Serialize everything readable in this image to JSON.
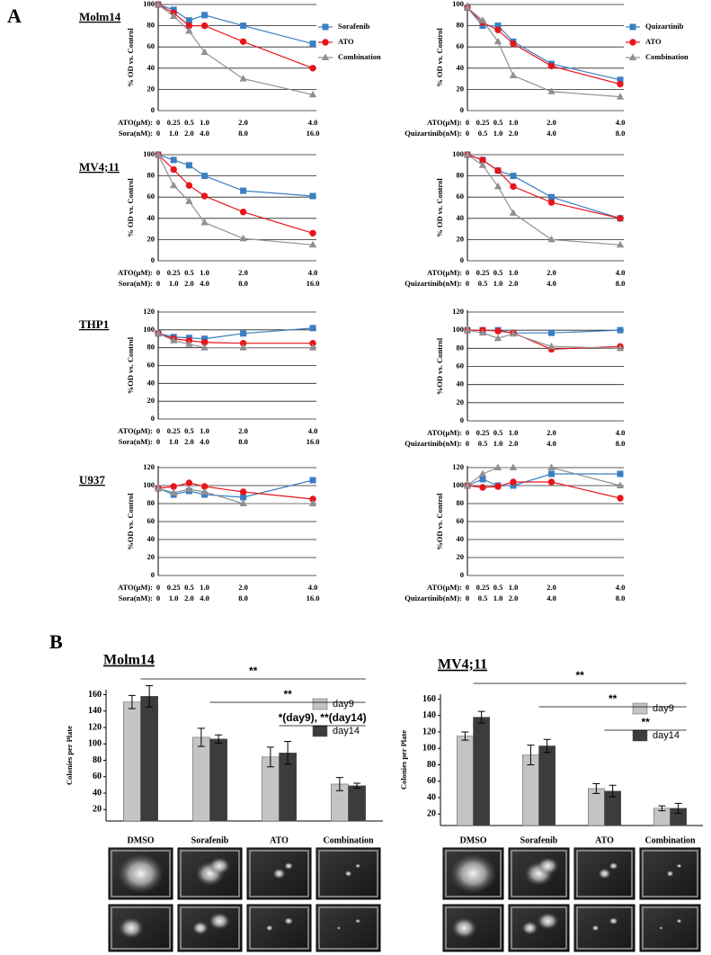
{
  "panel_labels": [
    "A",
    "B"
  ],
  "chart_data": [
    {
      "type": "line",
      "title": "Molm14",
      "ylabel": "% OD vs. Control",
      "xlabel": "ATO(μM):",
      "categories": [
        "0",
        "0.25",
        "0.5",
        "1.0",
        "2.0",
        "4.0"
      ],
      "xlabel2": "Sora(nM):",
      "categories2": [
        "0",
        "1.0",
        "2.0",
        "4.0",
        "8.0",
        "16.0"
      ],
      "ylim": [
        0,
        100
      ],
      "yticks": [
        0,
        20,
        40,
        60,
        80,
        100
      ],
      "grid": true,
      "legend": "right",
      "series": [
        {
          "name": "Sorafenib",
          "color": "#3a7fc1",
          "marker": "square",
          "values": [
            100,
            95,
            85,
            90,
            80,
            63
          ]
        },
        {
          "name": "ATO",
          "color": "#e8141b",
          "marker": "circle",
          "values": [
            100,
            92,
            80,
            80,
            65,
            40
          ]
        },
        {
          "name": "Combination",
          "color": "#909090",
          "marker": "triangle",
          "values": [
            100,
            89,
            75,
            55,
            30,
            15
          ]
        }
      ]
    },
    {
      "type": "line",
      "ylabel": "% OD vs. Control",
      "xlabel": "ATO(μM):",
      "categories": [
        "0",
        "0.25",
        "0.5",
        "1.0",
        "2.0",
        "4.0"
      ],
      "xlabel2": "Quizartinib(nM):",
      "categories2": [
        "0",
        "0.5",
        "1.0",
        "2.0",
        "4.0",
        "8.0"
      ],
      "ylim": [
        0,
        100
      ],
      "yticks": [
        0,
        20,
        40,
        60,
        80,
        100
      ],
      "grid": true,
      "legend": "right",
      "series": [
        {
          "name": "Quizartinib",
          "color": "#3a7fc1",
          "marker": "square",
          "values": [
            97,
            80,
            80,
            65,
            44,
            29
          ]
        },
        {
          "name": "ATO",
          "color": "#e8141b",
          "marker": "circle",
          "values": [
            97,
            83,
            76,
            63,
            42,
            25
          ]
        },
        {
          "name": "Combination",
          "color": "#909090",
          "marker": "triangle",
          "values": [
            97,
            85,
            65,
            33,
            18,
            13
          ]
        }
      ]
    },
    {
      "type": "line",
      "title": "MV4;11",
      "ylabel": "% OD vs. Control",
      "xlabel": "ATO(μM):",
      "categories": [
        "0",
        "0.25",
        "0.5",
        "1.0",
        "2.0",
        "4.0"
      ],
      "xlabel2": "Sora(nM):",
      "categories2": [
        "0",
        "1.0",
        "2.0",
        "4.0",
        "8.0",
        "16.0"
      ],
      "ylim": [
        0,
        100
      ],
      "yticks": [
        0,
        20,
        40,
        60,
        80,
        100
      ],
      "grid": true,
      "series": [
        {
          "color": "#3a7fc1",
          "marker": "square",
          "values": [
            100,
            95,
            90,
            80,
            66,
            61
          ]
        },
        {
          "color": "#e8141b",
          "marker": "circle",
          "values": [
            100,
            86,
            71,
            61,
            46,
            26
          ]
        },
        {
          "color": "#909090",
          "marker": "triangle",
          "values": [
            100,
            71,
            56,
            36,
            21,
            15
          ]
        }
      ]
    },
    {
      "type": "line",
      "ylabel": "% OD vs. Control",
      "xlabel": "ATO(μM):",
      "categories": [
        "0",
        "0.25",
        "0.5",
        "1.0",
        "2.0",
        "4.0"
      ],
      "xlabel2": "Quizartinib(nM):",
      "categories2": [
        "0",
        "0.5",
        "1.0",
        "2.0",
        "4.0",
        "8.0"
      ],
      "ylim": [
        0,
        100
      ],
      "yticks": [
        0,
        20,
        40,
        60,
        80,
        100
      ],
      "grid": true,
      "series": [
        {
          "color": "#3a7fc1",
          "marker": "square",
          "values": [
            100,
            95,
            85,
            80,
            60,
            40
          ]
        },
        {
          "color": "#e8141b",
          "marker": "circle",
          "values": [
            100,
            95,
            85,
            70,
            55,
            40
          ]
        },
        {
          "color": "#909090",
          "marker": "triangle",
          "values": [
            100,
            90,
            70,
            45,
            20,
            15
          ]
        }
      ]
    },
    {
      "type": "line",
      "title": "THP1",
      "ylabel": "%OD vs. Control",
      "xlabel": "ATO(μM):",
      "categories": [
        "0",
        "0.25",
        "0.5",
        "1.0",
        "2.0",
        "4.0"
      ],
      "xlabel2": "Sora(nM):",
      "categories2": [
        "0",
        "1.0",
        "2.0",
        "4.0",
        "8.0",
        "16.0"
      ],
      "ylim": [
        0,
        120
      ],
      "yticks": [
        0,
        20,
        40,
        60,
        80,
        100,
        120
      ],
      "grid": true,
      "series": [
        {
          "color": "#3a7fc1",
          "marker": "square",
          "values": [
            96,
            92,
            91,
            90,
            96,
            102
          ]
        },
        {
          "color": "#e8141b",
          "marker": "circle",
          "values": [
            96,
            90,
            88,
            86,
            85,
            85
          ]
        },
        {
          "color": "#909090",
          "marker": "triangle",
          "values": [
            96,
            88,
            84,
            80,
            80,
            80
          ]
        }
      ]
    },
    {
      "type": "line",
      "ylabel": "%OD vs. Control",
      "xlabel": "ATO(μM):",
      "categories": [
        "0",
        "0.25",
        "0.5",
        "1.0",
        "2.0",
        "4.0"
      ],
      "xlabel2": "Quizartinib(nM):",
      "categories2": [
        "0",
        "0.5",
        "1.0",
        "2.0",
        "4.0",
        "8.0"
      ],
      "ylim": [
        0,
        120
      ],
      "yticks": [
        0,
        20,
        40,
        60,
        80,
        100,
        120
      ],
      "grid": true,
      "series": [
        {
          "color": "#3a7fc1",
          "marker": "square",
          "values": [
            100,
            100,
            100,
            97,
            97,
            100
          ]
        },
        {
          "color": "#e8141b",
          "marker": "circle",
          "values": [
            100,
            100,
            99,
            97,
            79,
            82
          ]
        },
        {
          "color": "#909090",
          "marker": "triangle",
          "values": [
            100,
            97,
            91,
            96,
            82,
            80
          ]
        }
      ]
    },
    {
      "type": "line",
      "title": "U937",
      "ylabel": "%OD vs. Control",
      "xlabel": "ATO(μM):",
      "categories": [
        "0",
        "0.25",
        "0.5",
        "1.0",
        "2.0",
        "4.0"
      ],
      "xlabel2": "Sora(nM):",
      "categories2": [
        "0",
        "1.0",
        "2.0",
        "4.0",
        "8.0",
        "16.0"
      ],
      "ylim": [
        0,
        120
      ],
      "yticks": [
        0,
        20,
        40,
        60,
        80,
        100,
        120
      ],
      "grid": true,
      "series": [
        {
          "color": "#3a7fc1",
          "marker": "square",
          "values": [
            97,
            90,
            94,
            90,
            87,
            106
          ]
        },
        {
          "color": "#e8141b",
          "marker": "circle",
          "values": [
            97,
            99,
            103,
            99,
            93,
            85
          ]
        },
        {
          "color": "#909090",
          "marker": "triangle",
          "values": [
            97,
            92,
            96,
            93,
            80,
            80
          ]
        }
      ]
    },
    {
      "type": "line",
      "ylabel": "%OD vs. Control",
      "xlabel": "ATO(μM):",
      "categories": [
        "0",
        "0.25",
        "0.5",
        "1.0",
        "2.0",
        "4.0"
      ],
      "xlabel2": "Quizartinib(nM):",
      "categories2": [
        "0",
        "0.5",
        "1.0",
        "2.0",
        "4.0",
        "8.0"
      ],
      "ylim": [
        0,
        120
      ],
      "yticks": [
        0,
        20,
        40,
        60,
        80,
        100,
        120
      ],
      "grid": true,
      "series": [
        {
          "color": "#3a7fc1",
          "marker": "square",
          "values": [
            100,
            107,
            100,
            100,
            113,
            113
          ]
        },
        {
          "color": "#e8141b",
          "marker": "circle",
          "values": [
            100,
            98,
            99,
            104,
            104,
            86
          ]
        },
        {
          "color": "#909090",
          "marker": "triangle",
          "values": [
            100,
            113,
            120,
            120,
            120,
            100
          ]
        }
      ]
    },
    {
      "type": "bar",
      "title": "Molm14",
      "ylabel": "Colonies per Plate",
      "categories": [
        "DMSO",
        "Sorafenib",
        "ATO",
        "Combination"
      ],
      "ylim": [
        6,
        166
      ],
      "yticks": [
        20,
        40,
        60,
        80,
        100,
        120,
        140,
        160
      ],
      "legend": "right",
      "series": [
        {
          "name": "day9",
          "color": "#c4c4c4",
          "values": [
            151,
            108,
            84,
            51
          ],
          "errors": [
            8,
            11,
            12,
            8
          ]
        },
        {
          "name": "day14",
          "color": "#3c3c3c",
          "values": [
            158,
            106,
            89,
            49
          ],
          "errors": [
            13,
            5,
            14,
            3
          ]
        }
      ],
      "annotations": [
        {
          "text": "**",
          "from": "DMSO",
          "to": "Combination"
        },
        {
          "text": "**",
          "from": "Sorafenib",
          "to": "Combination"
        },
        {
          "text": "*(day9), **(day14)",
          "from": "ATO",
          "to": "Combination"
        }
      ]
    },
    {
      "type": "bar",
      "title": "MV4;11",
      "ylabel": "Colonies per Plate",
      "categories": [
        "DMSO",
        "Sorafenib",
        "ATO",
        "Combination"
      ],
      "ylim": [
        6,
        166
      ],
      "yticks": [
        20,
        40,
        60,
        80,
        100,
        120,
        140,
        160
      ],
      "legend": "right",
      "series": [
        {
          "name": "day9",
          "color": "#c4c4c4",
          "values": [
            115,
            92,
            51,
            27
          ],
          "errors": [
            5,
            12,
            6,
            3
          ]
        },
        {
          "name": "day14",
          "color": "#3c3c3c",
          "values": [
            138,
            103,
            48,
            27
          ],
          "errors": [
            7,
            8,
            7,
            6
          ]
        }
      ],
      "annotations": [
        {
          "text": "**",
          "from": "DMSO",
          "to": "Combination"
        },
        {
          "text": "**",
          "from": "Sorafenib",
          "to": "Combination"
        },
        {
          "text": "**",
          "from": "ATO",
          "to": "Combination"
        }
      ]
    }
  ]
}
